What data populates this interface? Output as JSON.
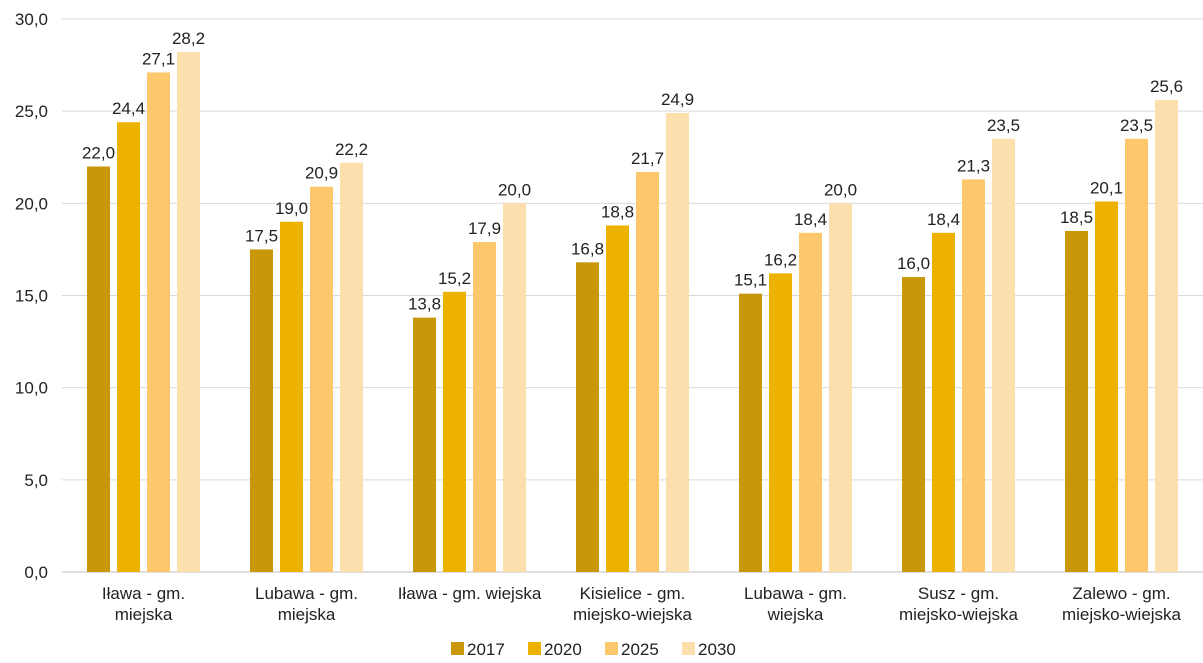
{
  "chart_data": {
    "type": "bar",
    "title": "",
    "xlabel": "",
    "ylabel": "",
    "ylim": [
      0,
      30
    ],
    "yticks": [
      "0,0",
      "5,0",
      "10,0",
      "15,0",
      "20,0",
      "25,0",
      "30,0"
    ],
    "grid": true,
    "legend_position": "bottom",
    "categories": [
      [
        "Iława - gm.",
        "miejska"
      ],
      [
        "Lubawa - gm.",
        "miejska"
      ],
      [
        "Iława - gm. wiejska"
      ],
      [
        "Kisielice - gm.",
        "miejsko-wiejska"
      ],
      [
        "Lubawa - gm.",
        "wiejska"
      ],
      [
        "Susz  - gm.",
        "miejsko-wiejska"
      ],
      [
        "Zalewo - gm.",
        "miejsko-wiejska"
      ]
    ],
    "series": [
      {
        "name": "2017",
        "color": "#C9980A",
        "values": [
          22.0,
          17.5,
          13.8,
          16.8,
          15.1,
          16.0,
          18.5
        ],
        "labels": [
          "22,0",
          "17,5",
          "13,8",
          "16,8",
          "15,1",
          "16,0",
          "18,5"
        ]
      },
      {
        "name": "2020",
        "color": "#EDB200",
        "values": [
          24.4,
          19.0,
          15.2,
          18.8,
          16.2,
          18.4,
          20.1
        ],
        "labels": [
          "24,4",
          "19,0",
          "15,2",
          "18,8",
          "16,2",
          "18,4",
          "20,1"
        ]
      },
      {
        "name": "2025",
        "color": "#FDC86B",
        "values": [
          27.1,
          20.9,
          17.9,
          21.7,
          18.4,
          21.3,
          23.5
        ],
        "labels": [
          "27,1",
          "20,9",
          "17,9",
          "21,7",
          "18,4",
          "21,3",
          "23,5"
        ]
      },
      {
        "name": "2030",
        "color": "#FDDFAE",
        "values": [
          28.2,
          22.2,
          20.0,
          24.9,
          20.0,
          23.5,
          25.6
        ],
        "labels": [
          "28,2",
          "22,2",
          "20,0",
          "24,9",
          "20,0",
          "23,5",
          "25,6"
        ]
      }
    ]
  }
}
